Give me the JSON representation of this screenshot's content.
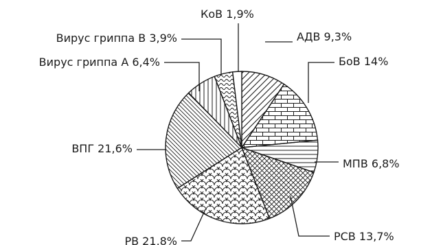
{
  "chart_data": {
    "type": "pie",
    "title": "",
    "legend": "none",
    "start_angle_deg": 0,
    "direction": "clockwise",
    "slices": [
      {
        "label": "АДВ",
        "value": 9.3,
        "text": "АДВ 9,3%",
        "pattern": "diagonal-forward"
      },
      {
        "label": "БоВ",
        "value": 14,
        "text": "БоВ 14%",
        "pattern": "brick"
      },
      {
        "label": "МПВ",
        "value": 6.8,
        "text": "МПВ 6,8%",
        "pattern": "horizontal"
      },
      {
        "label": "РСВ",
        "value": 13.7,
        "text": "РСВ 13,7%",
        "pattern": "crosshatch"
      },
      {
        "label": "РВ",
        "value": 21.8,
        "text": "РВ 21,8%",
        "pattern": "scales"
      },
      {
        "label": "ВПГ",
        "value": 21.6,
        "text": "ВПГ 21,6%",
        "pattern": "diagonal-back"
      },
      {
        "label": "Вирус гриппа А",
        "value": 6.4,
        "text": "Вирус гриппа А 6,4%",
        "pattern": "vertical"
      },
      {
        "label": "Вирус гриппа В",
        "value": 3.9,
        "text": "Вирус гриппа В 3,9%",
        "pattern": "wavy"
      },
      {
        "label": "КоВ",
        "value": 1.9,
        "text": "КоВ 1,9%",
        "pattern": "none"
      }
    ]
  }
}
